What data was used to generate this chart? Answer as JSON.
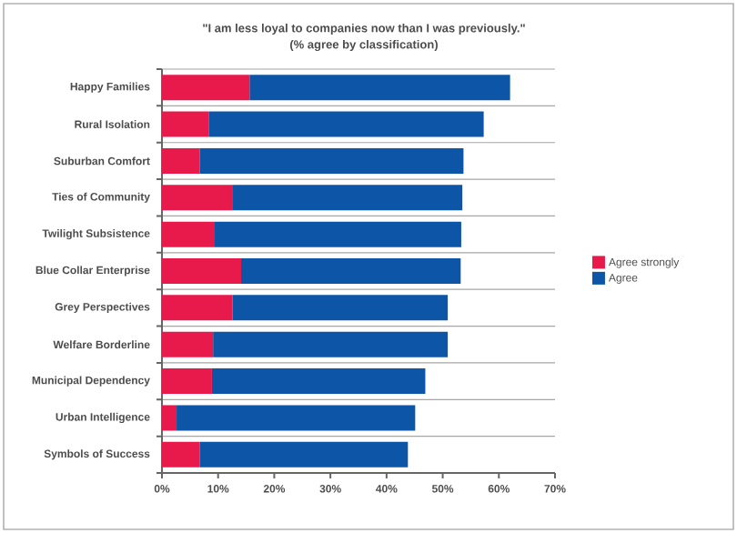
{
  "chart_data": {
    "type": "bar",
    "orientation": "horizontal",
    "stacked": true,
    "title": "\"I am less loyal to companies now than I was previously.\"",
    "subtitle": "(% agree by classification)",
    "categories": [
      "Happy Families",
      "Rural Isolation",
      "Suburban Comfort",
      "Ties of Community",
      "Twilight Subsistence",
      "Blue Collar Enterprise",
      "Grey Perspectives",
      "Welfare Borderline",
      "Municipal Dependency",
      "Urban Intelligence",
      "Symbols of Success"
    ],
    "series": [
      {
        "name": "Agree strongly",
        "color": "#e8194b",
        "values": [
          15.6,
          8.4,
          6.7,
          12.5,
          9.4,
          14.1,
          12.6,
          9.1,
          8.9,
          2.6,
          6.7
        ]
      },
      {
        "name": "Agree",
        "color": "#0d55a6",
        "values": [
          46.4,
          48.9,
          47.0,
          41.0,
          43.9,
          39.1,
          38.3,
          41.8,
          38.0,
          42.5,
          37.1
        ]
      }
    ],
    "xlim": [
      0,
      70
    ],
    "xticks": [
      {
        "value": 0,
        "label": "0%"
      },
      {
        "value": 10,
        "label": "10%"
      },
      {
        "value": 20,
        "label": "20%"
      },
      {
        "value": 30,
        "label": "30%"
      },
      {
        "value": 40,
        "label": "40%"
      },
      {
        "value": 50,
        "label": "50%"
      },
      {
        "value": 60,
        "label": "60%"
      },
      {
        "value": 70,
        "label": "70%"
      }
    ],
    "grid": "y",
    "legend": "right"
  }
}
